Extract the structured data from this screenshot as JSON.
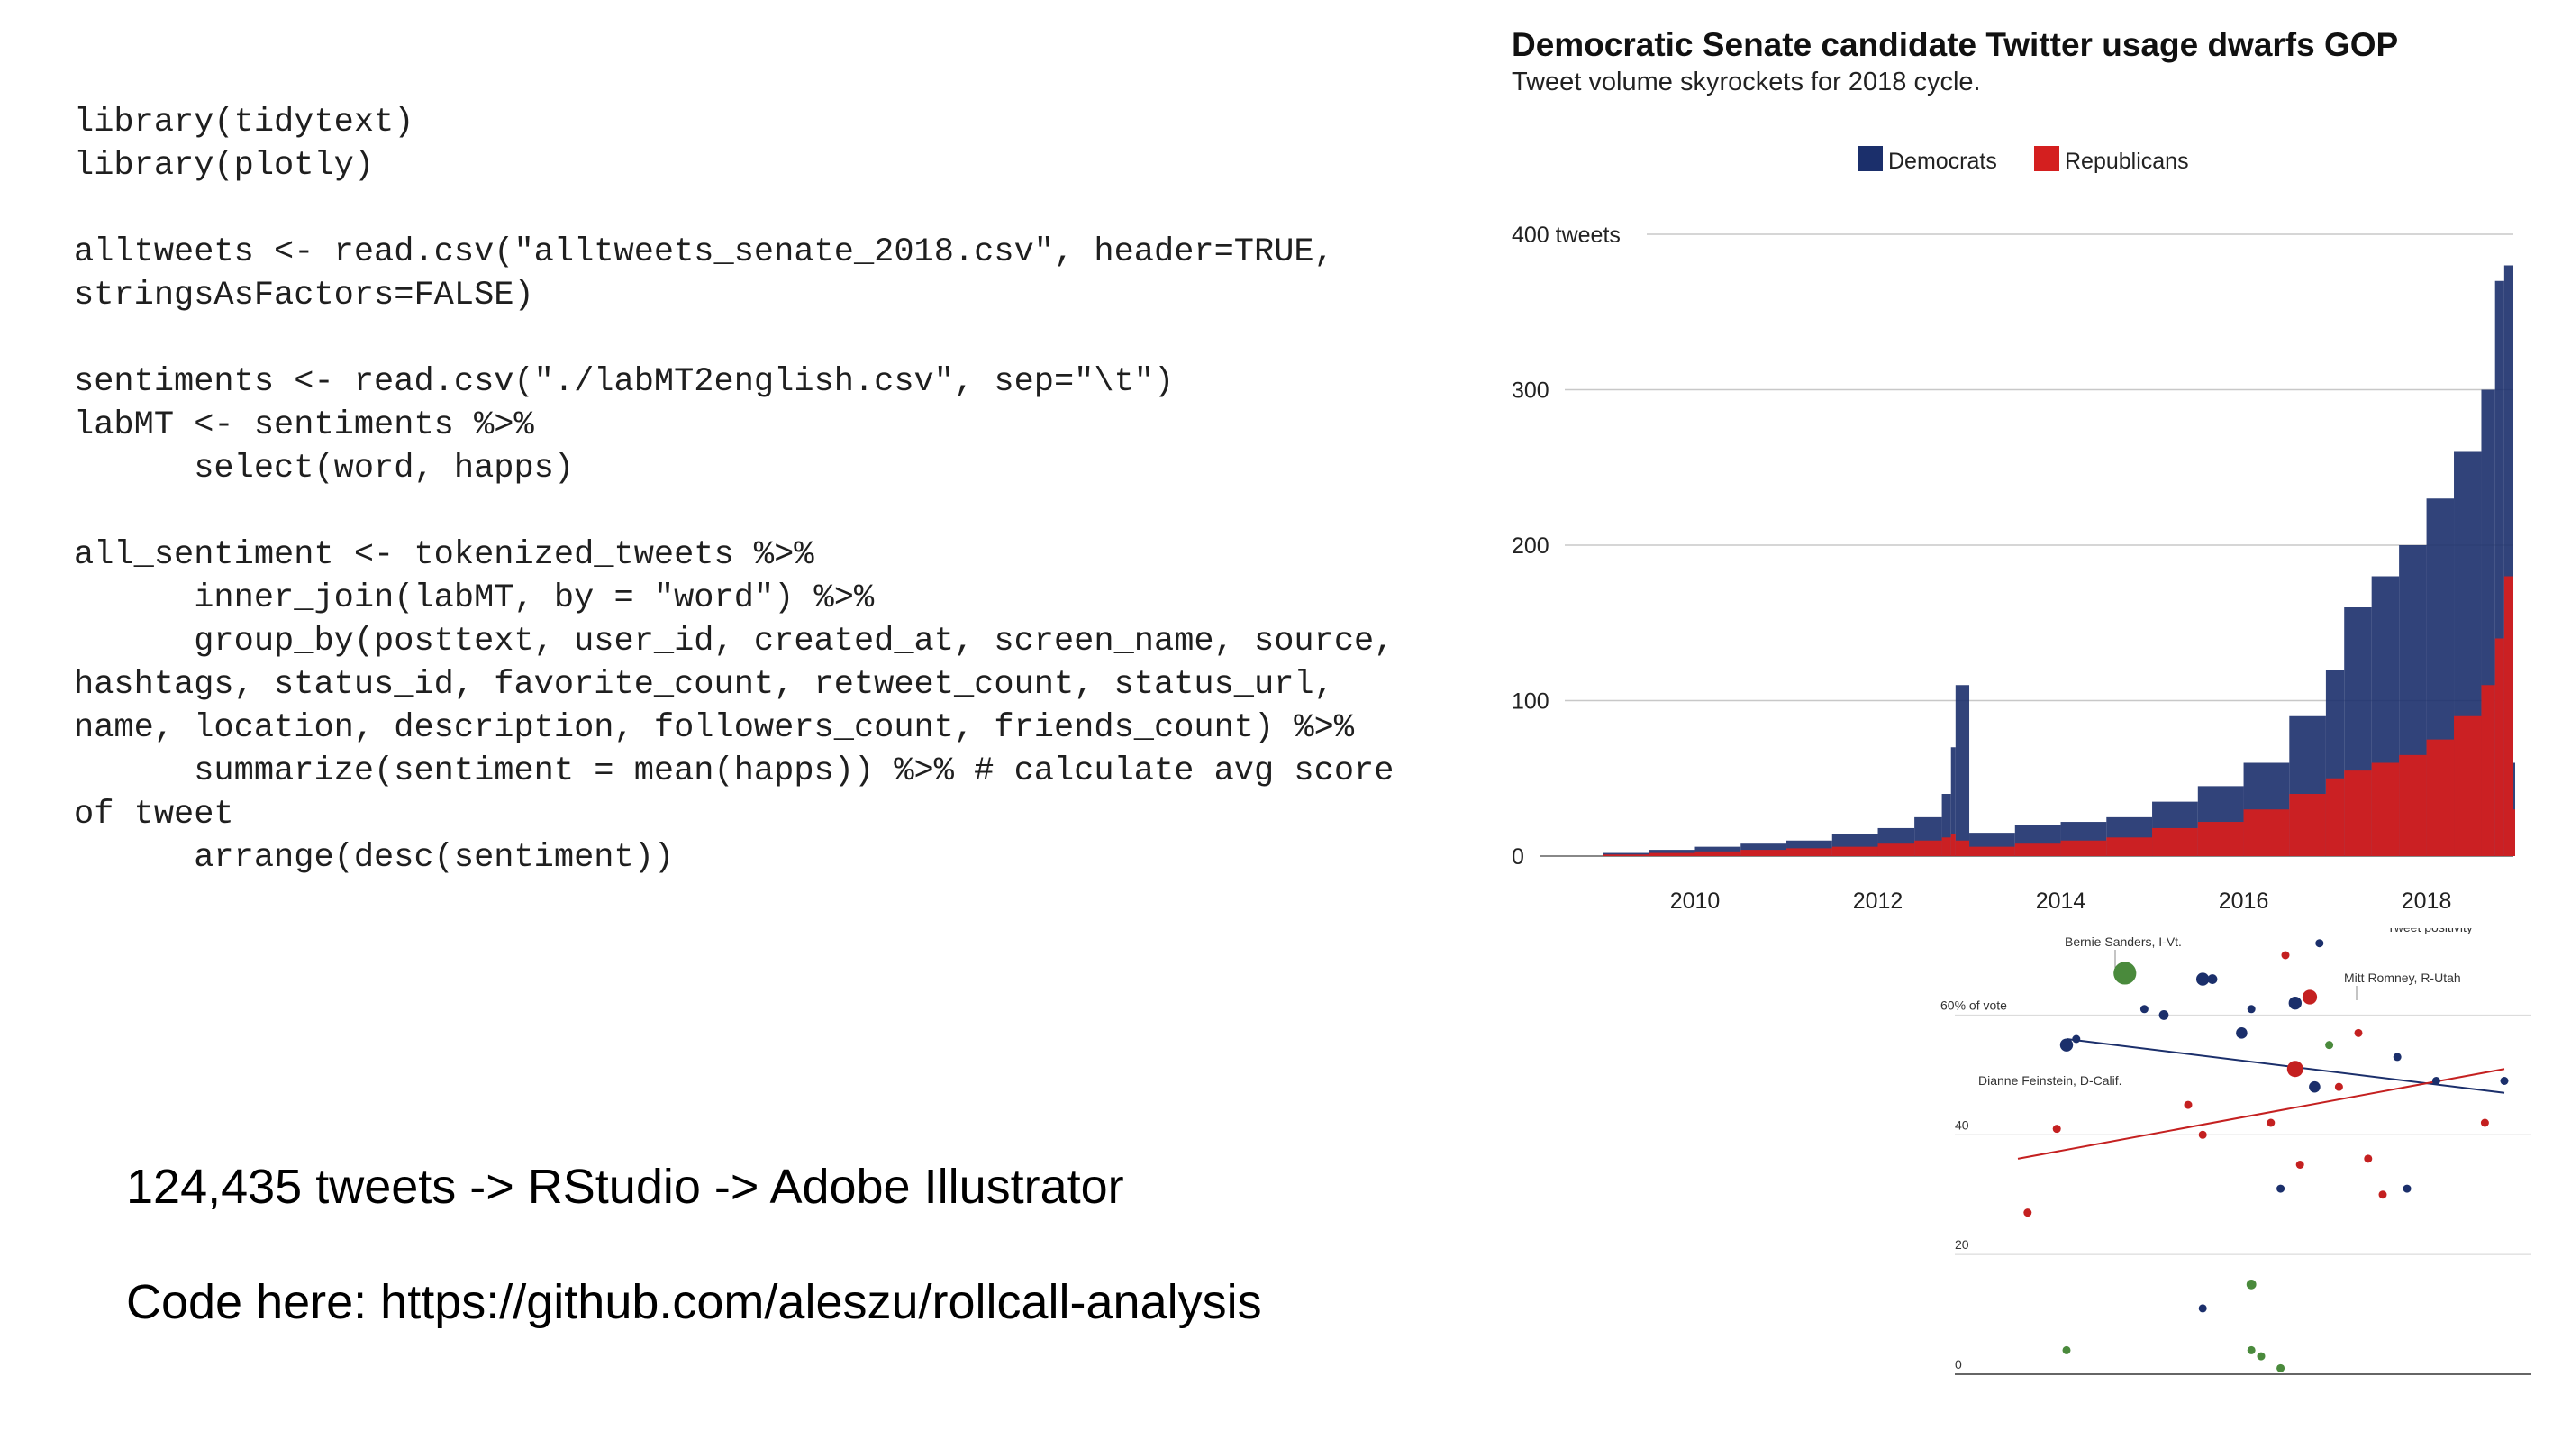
{
  "code_lines": [
    "library(tidytext)",
    "library(plotly)",
    "",
    "alltweets <- read.csv(\"alltweets_senate_2018.csv\", header=TRUE,",
    "stringsAsFactors=FALSE)",
    "",
    "sentiments <- read.csv(\"./labMT2english.csv\", sep=\"\\t\")",
    "labMT <- sentiments %>%",
    "      select(word, happs)",
    "",
    "all_sentiment <- tokenized_tweets %>%",
    "      inner_join(labMT, by = \"word\") %>%",
    "      group_by(posttext, user_id, created_at, screen_name, source,",
    "hashtags, status_id, favorite_count, retweet_count, status_url,",
    "name, location, description, followers_count, friends_count) %>%",
    "      summarize(sentiment = mean(happs)) %>% # calculate avg score",
    "of tweet",
    "      arrange(desc(sentiment))"
  ],
  "captions": {
    "line1": "124,435 tweets -> RStudio -> Adobe Illustrator",
    "line2": "Code here: https://github.com/aleszu/rollcall-analysis"
  },
  "chart_data": [
    {
      "type": "bar",
      "title": "Democratic Senate candidate Twitter usage dwarfs GOP",
      "subtitle": "Tweet volume skyrockets for 2018 cycle.",
      "legend": {
        "position": "top-center",
        "entries": [
          "Democrats",
          "Republicans"
        ]
      },
      "colors": {
        "Democrats": "#1b2f6b",
        "Republicans": "#d41f1f"
      },
      "ylim": [
        0,
        400
      ],
      "y_ticks": [
        {
          "value": 0,
          "label": "0"
        },
        {
          "value": 100,
          "label": "100"
        },
        {
          "value": 200,
          "label": "200"
        },
        {
          "value": 300,
          "label": "300"
        },
        {
          "value": 400,
          "label": "400 tweets"
        }
      ],
      "xlim": [
        2009.0,
        2018.95
      ],
      "x_ticks": [
        {
          "value": 2010,
          "label": "2010"
        },
        {
          "value": 2012,
          "label": "2012"
        },
        {
          "value": 2014,
          "label": "2014"
        },
        {
          "value": 2016,
          "label": "2016"
        },
        {
          "value": 2018,
          "label": "2018"
        }
      ],
      "grid": true,
      "x": [
        2009.0,
        2009.5,
        2010.0,
        2010.5,
        2011.0,
        2011.5,
        2012.0,
        2012.4,
        2012.7,
        2012.8,
        2012.85,
        2013.0,
        2013.5,
        2014.0,
        2014.5,
        2015.0,
        2015.5,
        2016.0,
        2016.5,
        2016.9,
        2017.1,
        2017.4,
        2017.7,
        2018.0,
        2018.3,
        2018.6,
        2018.75,
        2018.85,
        2018.95
      ],
      "series": [
        {
          "name": "Democrats",
          "values": [
            2,
            4,
            6,
            8,
            10,
            14,
            18,
            25,
            40,
            70,
            110,
            15,
            20,
            22,
            25,
            35,
            45,
            60,
            90,
            120,
            160,
            180,
            200,
            230,
            260,
            300,
            370,
            380,
            60
          ]
        },
        {
          "name": "Republicans",
          "values": [
            1,
            2,
            3,
            4,
            5,
            6,
            8,
            10,
            12,
            14,
            10,
            6,
            8,
            10,
            12,
            18,
            22,
            30,
            40,
            50,
            55,
            60,
            65,
            75,
            90,
            110,
            140,
            180,
            30
          ]
        }
      ]
    },
    {
      "type": "scatter",
      "annotations": [
        "Bernie Sanders, I-Vt.",
        "Mitt Romney, R-Utah",
        "Dianne Feinstein, D-Calif.",
        "Tweet positivity"
      ],
      "ylim": [
        0,
        70
      ],
      "y_ticks": [
        {
          "value": 0,
          "label": "0"
        },
        {
          "value": 20,
          "label": "20"
        },
        {
          "value": 40,
          "label": "40"
        },
        {
          "value": 60,
          "label": "60% of vote"
        }
      ],
      "xlim": [
        0,
        100
      ],
      "grid": true,
      "colors": {
        "dem": "#1b2f6b",
        "rep": "#c42020",
        "ind": "#4a8a3c"
      },
      "series": [
        {
          "name": "",
          "points": [
            {
              "x": 10,
              "y": 55,
              "size": 8,
              "party": "dem"
            },
            {
              "x": 12,
              "y": 56,
              "size": 5,
              "party": "dem"
            },
            {
              "x": 22,
              "y": 67,
              "size": 14,
              "party": "ind"
            },
            {
              "x": 26,
              "y": 61,
              "size": 5,
              "party": "dem"
            },
            {
              "x": 30,
              "y": 60,
              "size": 6,
              "party": "dem"
            },
            {
              "x": 38,
              "y": 66,
              "size": 8,
              "party": "dem"
            },
            {
              "x": 40,
              "y": 66,
              "size": 6,
              "party": "dem"
            },
            {
              "x": 46,
              "y": 57,
              "size": 7,
              "party": "dem"
            },
            {
              "x": 48,
              "y": 61,
              "size": 5,
              "party": "dem"
            },
            {
              "x": 55,
              "y": 70,
              "size": 5,
              "party": "rep"
            },
            {
              "x": 57,
              "y": 62,
              "size": 8,
              "party": "dem"
            },
            {
              "x": 57,
              "y": 51,
              "size": 10,
              "party": "rep"
            },
            {
              "x": 60,
              "y": 63,
              "size": 9,
              "party": "rep"
            },
            {
              "x": 62,
              "y": 72,
              "size": 5,
              "party": "dem"
            },
            {
              "x": 64,
              "y": 55,
              "size": 5,
              "party": "ind"
            },
            {
              "x": 61,
              "y": 48,
              "size": 7,
              "party": "dem"
            },
            {
              "x": 66,
              "y": 48,
              "size": 5,
              "party": "rep"
            },
            {
              "x": 70,
              "y": 57,
              "size": 5,
              "party": "rep"
            },
            {
              "x": 78,
              "y": 53,
              "size": 5,
              "party": "dem"
            },
            {
              "x": 86,
              "y": 49,
              "size": 5,
              "party": "dem"
            },
            {
              "x": 100,
              "y": 49,
              "size": 5,
              "party": "dem"
            },
            {
              "x": 8,
              "y": 41,
              "size": 5,
              "party": "rep"
            },
            {
              "x": 2,
              "y": 27,
              "size": 5,
              "party": "rep"
            },
            {
              "x": 35,
              "y": 45,
              "size": 5,
              "party": "rep"
            },
            {
              "x": 38,
              "y": 40,
              "size": 5,
              "party": "rep"
            },
            {
              "x": 52,
              "y": 42,
              "size": 5,
              "party": "rep"
            },
            {
              "x": 54,
              "y": 31,
              "size": 5,
              "party": "dem"
            },
            {
              "x": 58,
              "y": 35,
              "size": 5,
              "party": "rep"
            },
            {
              "x": 72,
              "y": 36,
              "size": 5,
              "party": "rep"
            },
            {
              "x": 75,
              "y": 30,
              "size": 5,
              "party": "rep"
            },
            {
              "x": 80,
              "y": 31,
              "size": 5,
              "party": "dem"
            },
            {
              "x": 96,
              "y": 42,
              "size": 5,
              "party": "rep"
            },
            {
              "x": 10,
              "y": 4,
              "size": 5,
              "party": "ind"
            },
            {
              "x": 38,
              "y": 11,
              "size": 5,
              "party": "dem"
            },
            {
              "x": 48,
              "y": 15,
              "size": 6,
              "party": "ind"
            },
            {
              "x": 48,
              "y": 4,
              "size": 5,
              "party": "ind"
            },
            {
              "x": 50,
              "y": 3,
              "size": 5,
              "party": "ind"
            },
            {
              "x": 54,
              "y": 1,
              "size": 5,
              "party": "ind"
            }
          ]
        }
      ],
      "trendlines": [
        {
          "party": "dem",
          "from": [
            10,
            56
          ],
          "to": [
            100,
            47
          ]
        },
        {
          "party": "rep",
          "from": [
            0,
            36
          ],
          "to": [
            100,
            51
          ]
        }
      ]
    }
  ]
}
